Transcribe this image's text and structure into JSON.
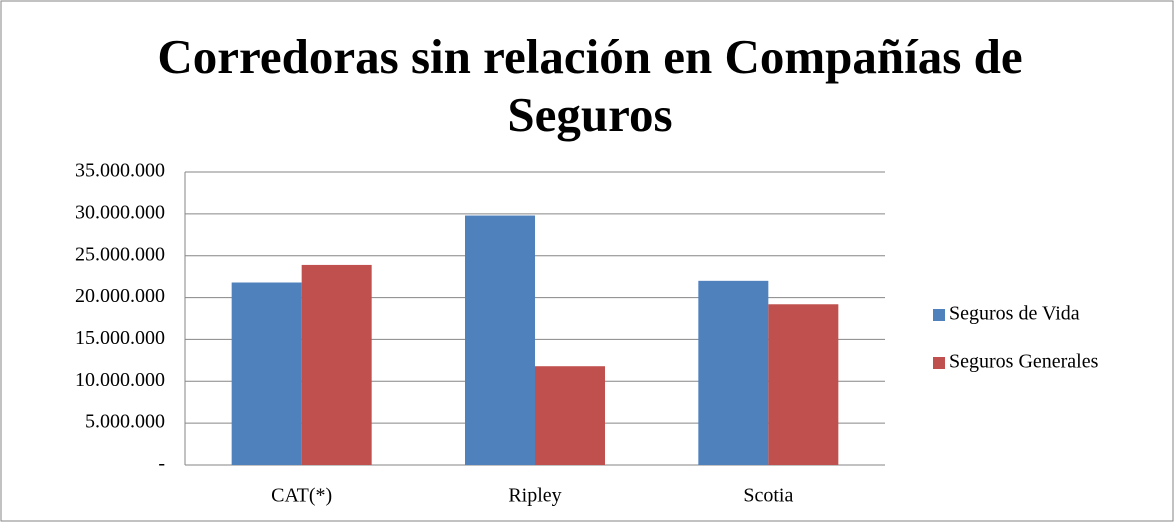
{
  "chart_data": {
    "type": "bar",
    "title": "Corredoras sin relación en Compañías de Seguros",
    "categories": [
      "CAT(*)",
      "Ripley",
      "Scotia"
    ],
    "series": [
      {
        "name": "Seguros de Vida",
        "color": "#4f81bd",
        "values": [
          21800000,
          29800000,
          22000000
        ]
      },
      {
        "name": "Seguros Generales",
        "color": "#c0504d",
        "values": [
          23900000,
          11800000,
          19200000
        ]
      }
    ],
    "ylim": [
      0,
      35000000
    ],
    "yticks": [
      {
        "value": 0,
        "label": "-"
      },
      {
        "value": 5000000,
        "label": "5.000.000"
      },
      {
        "value": 10000000,
        "label": "10.000.000"
      },
      {
        "value": 15000000,
        "label": "15.000.000"
      },
      {
        "value": 20000000,
        "label": "20.000.000"
      },
      {
        "value": 25000000,
        "label": "25.000.000"
      },
      {
        "value": 30000000,
        "label": "30.000.000"
      },
      {
        "value": 35000000,
        "label": "35.000.000"
      }
    ],
    "grid": true,
    "legend": "right"
  }
}
